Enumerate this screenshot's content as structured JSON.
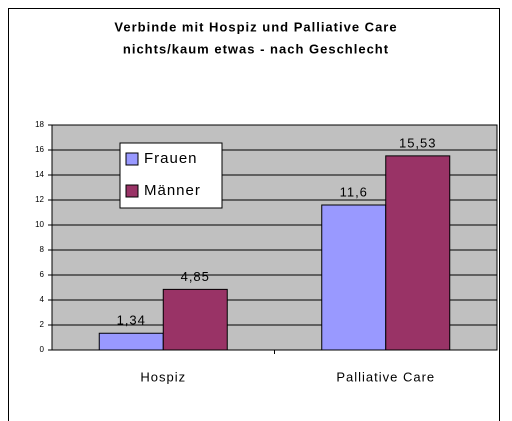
{
  "chart_data": {
    "type": "bar",
    "title": [
      "Verbinde mit Hospiz und Palliative Care",
      "nichts/kaum etwas - nach Geschlecht"
    ],
    "categories": [
      "Hospiz",
      "Palliative Care"
    ],
    "series": [
      {
        "name": "Frauen",
        "color": "#9999ff",
        "values": [
          1.34,
          11.6
        ],
        "value_labels": [
          "1,34",
          "11,6"
        ]
      },
      {
        "name": "Männer",
        "color": "#993366",
        "values": [
          4.85,
          15.53
        ],
        "value_labels": [
          "4,85",
          "15,53"
        ]
      }
    ],
    "ylim": [
      0,
      18
    ],
    "yticks": [
      0,
      2,
      4,
      6,
      8,
      10,
      12,
      14,
      16,
      18
    ],
    "grid": true,
    "legend": "top-left",
    "plot_background": "#c0c0c0"
  }
}
